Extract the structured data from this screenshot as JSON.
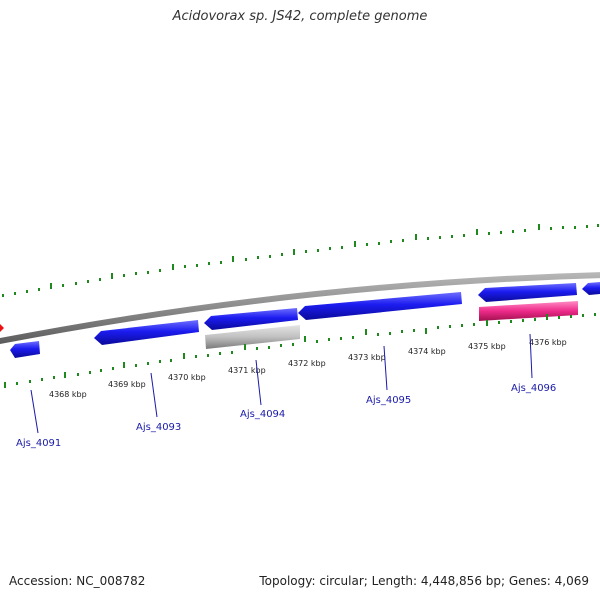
{
  "title": "Acidovorax sp. JS42, complete genome",
  "footer": {
    "accession": "Accession: NC_008782",
    "summary": "Topology: circular; Length: 4,448,856 bp; Genes: 4,069"
  },
  "ticks": [
    "4368 kbp",
    "4369 kbp",
    "4370 kbp",
    "4371 kbp",
    "4372 kbp",
    "4373 kbp",
    "4374 kbp",
    "4375 kbp",
    "4376 kbp"
  ],
  "genes": [
    "Ajs_4091",
    "Ajs_4093",
    "Ajs_4094",
    "Ajs_4095",
    "Ajs_4096"
  ],
  "colors": {
    "backbone": "#8a8a8a",
    "cds": "#1a1aee",
    "pseudo": "#bdbdbd",
    "rna": "#ee2a8a",
    "highlight": "#ee1111",
    "tick": "#1e8a1e",
    "gene_label": "#1a1aa8"
  }
}
